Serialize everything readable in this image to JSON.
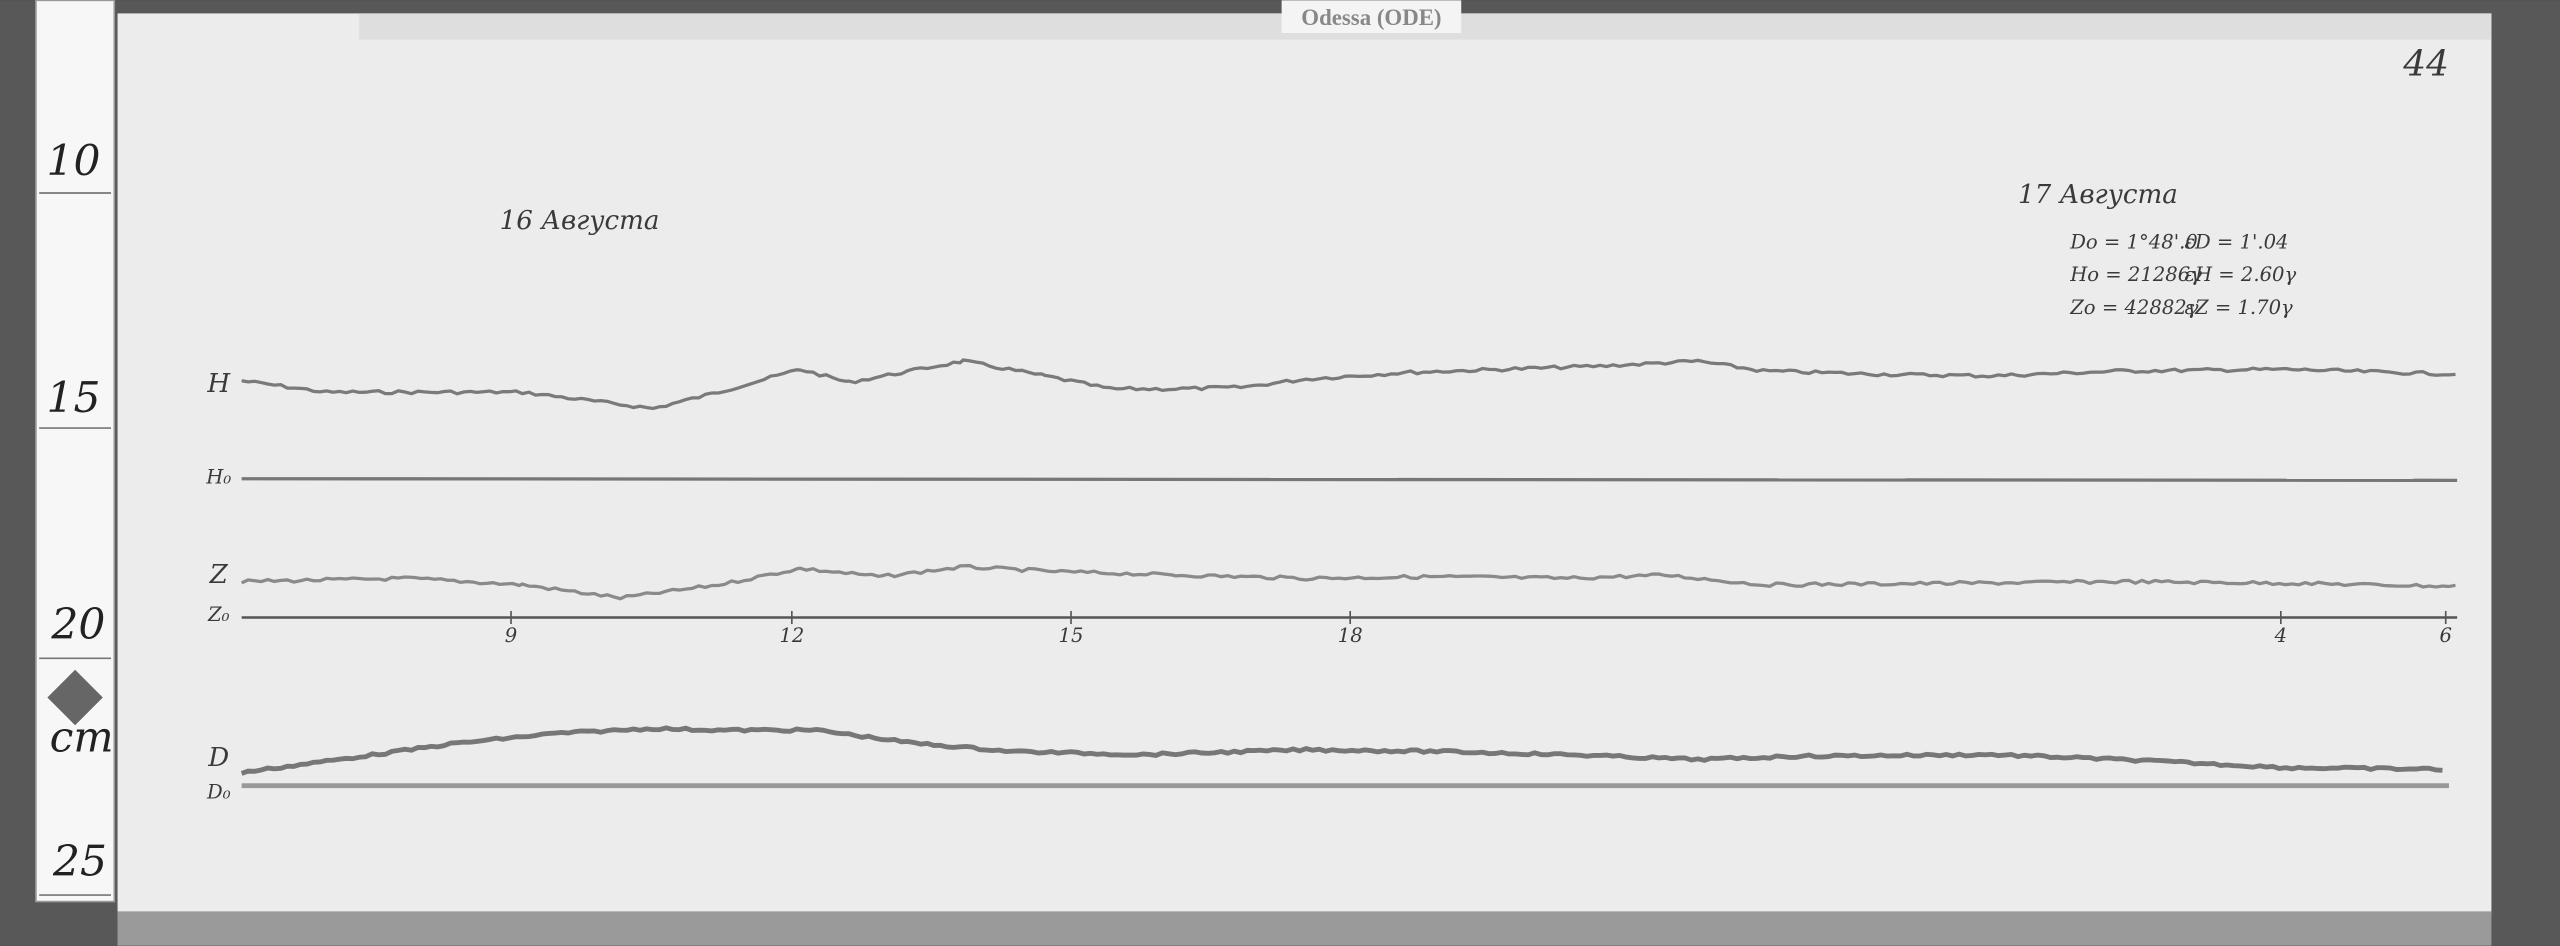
{
  "header_tag": "Odessa (ODE)",
  "page_number": "44",
  "ruler": {
    "labels": [
      "10",
      "15",
      "20",
      "cm",
      "25"
    ]
  },
  "sheet": {
    "date_left": "16 Августа",
    "date_right": "17 Августа",
    "baselines": [
      [
        "Do = 1°48'.0",
        "εD = 1'.04"
      ],
      [
        "Ho = 21286γ",
        "εH = 2.60γ"
      ],
      [
        "Zo = 42882γ",
        "εZ = 1.70γ"
      ]
    ],
    "trace_labels": [
      "H",
      "H₀",
      "Z",
      "Z₀",
      "D",
      "D₀"
    ],
    "hour_labels": [
      "9",
      "12",
      "15",
      "18",
      "4",
      "6"
    ]
  }
}
